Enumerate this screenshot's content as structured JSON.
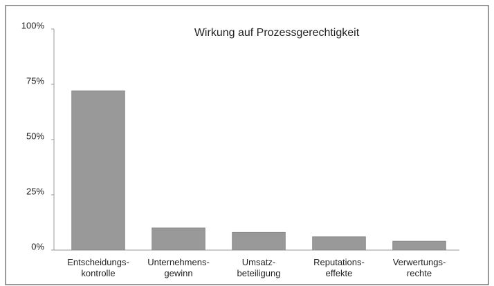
{
  "chart_data": {
    "type": "bar",
    "title": "Wirkung auf Prozessgerechtigkeit",
    "categories": [
      "Entscheidungs-\nkontrolle",
      "Unternehmens-\ngewinn",
      "Umsatz-\nbeteiligung",
      "Reputations-\neffekte",
      "Verwertungs-\nrechte"
    ],
    "values": [
      72,
      10,
      8,
      6,
      4
    ],
    "color": "#999999",
    "ylim": [
      0,
      100
    ],
    "yticks": [
      {
        "value": 0,
        "label": "0%"
      },
      {
        "value": 25,
        "label": "25%"
      },
      {
        "value": 50,
        "label": "50%"
      },
      {
        "value": 75,
        "label": "75%"
      },
      {
        "value": 100,
        "label": "100%"
      }
    ],
    "grid": false
  }
}
